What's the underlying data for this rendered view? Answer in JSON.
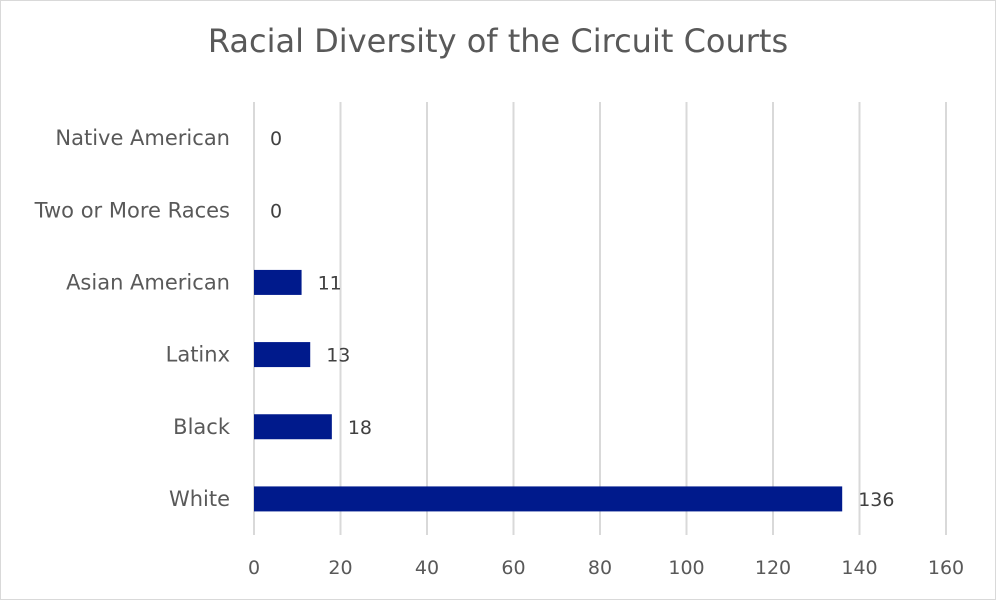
{
  "chart_data": {
    "type": "bar",
    "orientation": "horizontal",
    "title": "Racial Diversity of the Circuit Courts",
    "categories": [
      "Native American",
      "Two or More Races",
      "Asian American",
      "Latinx",
      "Black",
      "White"
    ],
    "values": [
      0,
      0,
      11,
      13,
      18,
      136
    ],
    "xlim": [
      0,
      160
    ],
    "xticks": [
      0,
      20,
      40,
      60,
      80,
      100,
      120,
      140,
      160
    ],
    "grid": "vertical",
    "data_labels": true,
    "bar_color": "#001a8c",
    "gridline_color": "#d9d9d9",
    "text_color": "#595959"
  }
}
